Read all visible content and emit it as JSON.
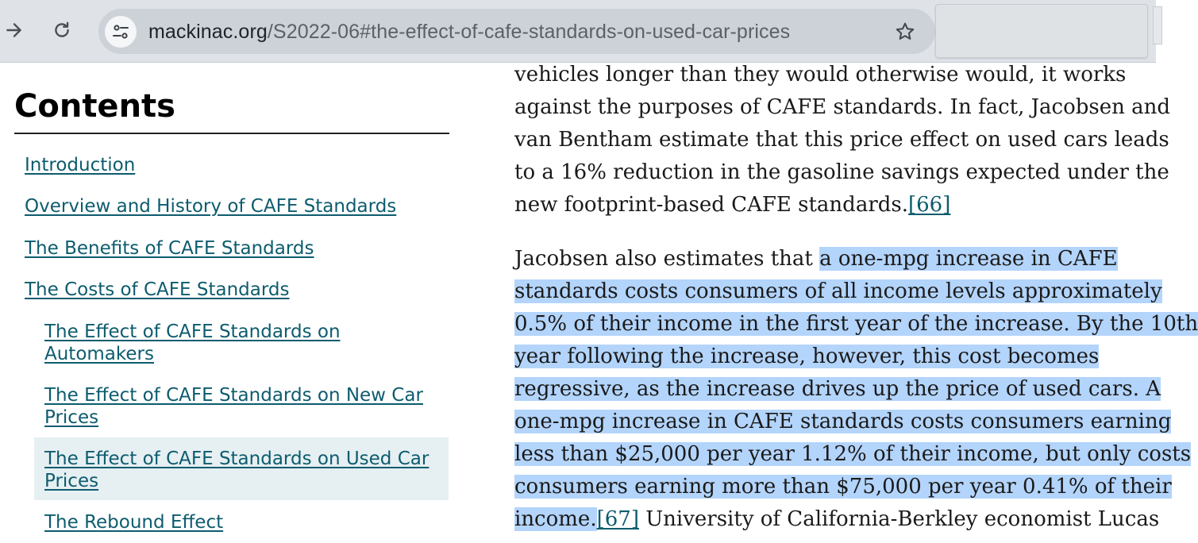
{
  "browser": {
    "url_host": "mackinac.org",
    "url_path": "/S2022-06#the-effect-of-cafe-standards-on-used-car-prices"
  },
  "toc": {
    "heading": "Contents",
    "items": [
      {
        "label": "Introduction",
        "level": 1
      },
      {
        "label": "Overview and History of CAFE Standards",
        "level": 1
      },
      {
        "label": "The Benefits of CAFE Standards",
        "level": 1
      },
      {
        "label": "The Costs of CAFE Standards",
        "level": 1
      },
      {
        "label_lines": [
          "The Effect of CAFE Standards on",
          "Automakers"
        ],
        "level": 2
      },
      {
        "label_lines": [
          "The Effect of CAFE Standards on New Car",
          "Prices"
        ],
        "level": 2
      },
      {
        "label_lines": [
          "The Effect of CAFE Standards on Used Car",
          "Prices"
        ],
        "level": 2,
        "active": true
      },
      {
        "label": "The Rebound Effect",
        "level": 2
      }
    ]
  },
  "article": {
    "para1": [
      "vehicles longer than they would otherwise would, it works",
      "against the purposes of CAFE standards. In fact, Jacobsen and",
      "van Bentham estimate that this price effect on used cars leads",
      "to a 16% reduction in the gasoline savings expected under the",
      "new footprint-based CAFE standards."
    ],
    "ref66": "[66]",
    "para2_line1_plain": "Jacobsen also estimates that ",
    "para2_line1_hl": "a one-mpg increase in CAFE",
    "para2_hl_lines": [
      "standards costs consumers of all income levels approximately",
      "0.5% of their income in the first year of the increase. By the 10th",
      "year following the increase, however, this cost becomes",
      "regressive, as the increase drives up the price of used cars. A",
      "one-mpg increase in CAFE standards costs consumers earning",
      "less than $25,000 per year 1.12% of their income, but only costs",
      "consumers earning more than $75,000 per year 0.41% of their"
    ],
    "para2_last_hl": "income.",
    "ref67": "[67]",
    "para2_last_plain": " University of California-Berkley economist Lucas"
  },
  "colors": {
    "link": "#0d5c6e",
    "selection": "#b3d4fb",
    "toc_active_bg": "#e6eff2",
    "toolbar": "#dfe3e8"
  }
}
